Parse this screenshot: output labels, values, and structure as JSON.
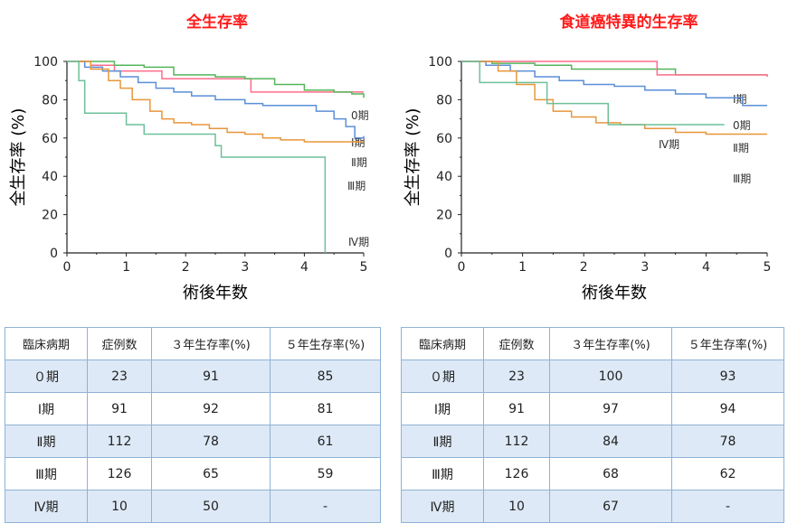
{
  "chart_data": [
    {
      "type": "line",
      "title": "全生存率",
      "xlabel": "術後年数",
      "ylabel": "全生存率 (%)",
      "xlim": [
        0,
        5
      ],
      "ylim": [
        0,
        100
      ],
      "xticks": [
        "0",
        "1",
        "2",
        "3",
        "4",
        "5"
      ],
      "yticks": [
        "0",
        "20",
        "40",
        "60",
        "80",
        "100"
      ],
      "grid": false,
      "series": [
        {
          "name": "0期",
          "color": "#ff6b8a",
          "x": [
            0,
            0.4,
            0.8,
            1.6,
            3.1,
            5
          ],
          "y": [
            100,
            98,
            95,
            91,
            84,
            84
          ]
        },
        {
          "name": "Ⅰ期",
          "color": "#55b55a",
          "x": [
            0,
            0.8,
            1.3,
            1.8,
            2.5,
            3.0,
            3.5,
            4.0,
            4.5,
            4.8,
            5
          ],
          "y": [
            100,
            98,
            97,
            93,
            92,
            91,
            88,
            85,
            84,
            83,
            81
          ]
        },
        {
          "name": "Ⅱ期",
          "color": "#5a8fd8",
          "x": [
            0,
            0.3,
            0.6,
            0.9,
            1.2,
            1.5,
            1.8,
            2.1,
            2.5,
            3.0,
            3.3,
            3.7,
            4.2,
            4.5,
            4.7,
            4.85,
            5
          ],
          "y": [
            100,
            97,
            95,
            92,
            89,
            86,
            84,
            82,
            80,
            78,
            77,
            77,
            74,
            70,
            66,
            60,
            61
          ]
        },
        {
          "name": "Ⅲ期",
          "color": "#e8963a",
          "x": [
            0,
            0.4,
            0.7,
            0.9,
            1.1,
            1.4,
            1.6,
            1.8,
            2.1,
            2.4,
            2.7,
            3.0,
            3.3,
            3.6,
            4.0,
            5
          ],
          "y": [
            100,
            96,
            90,
            86,
            80,
            74,
            70,
            68,
            67,
            65,
            63,
            62,
            60,
            59,
            58,
            58
          ]
        },
        {
          "name": "Ⅳ期",
          "color": "#6dc09a",
          "x": [
            0,
            0.2,
            0.3,
            1.0,
            1.3,
            2.5,
            2.6,
            4.3,
            4.35
          ],
          "y": [
            100,
            90,
            73,
            67,
            62,
            56,
            50,
            50,
            0
          ]
        }
      ]
    },
    {
      "type": "line",
      "title": "食道癌特異的生存率",
      "xlabel": "術後年数",
      "ylabel": "全生存率 (%)",
      "xlim": [
        0,
        5
      ],
      "ylim": [
        0,
        100
      ],
      "xticks": [
        "0",
        "1",
        "2",
        "3",
        "4",
        "5"
      ],
      "yticks": [
        "0",
        "20",
        "40",
        "60",
        "80",
        "100"
      ],
      "grid": false,
      "series": [
        {
          "name": "Ⅰ期",
          "color": "#55b55a",
          "x": [
            0,
            0.5,
            1.2,
            1.8,
            3.5,
            5
          ],
          "y": [
            100,
            99,
            98,
            96,
            93,
            93
          ]
        },
        {
          "name": "0期",
          "color": "#ff6b8a",
          "x": [
            0,
            3.1,
            3.2,
            5
          ],
          "y": [
            100,
            100,
            93,
            92
          ]
        },
        {
          "name": "Ⅱ期",
          "color": "#5a8fd8",
          "x": [
            0,
            0.4,
            0.8,
            1.2,
            1.6,
            2.0,
            2.5,
            3.0,
            3.5,
            4.0,
            4.6,
            5
          ],
          "y": [
            100,
            98,
            95,
            92,
            90,
            88,
            87,
            85,
            83,
            81,
            77,
            77
          ]
        },
        {
          "name": "Ⅲ期",
          "color": "#e8963a",
          "x": [
            0,
            0.6,
            0.9,
            1.2,
            1.5,
            1.8,
            2.2,
            2.6,
            3.0,
            3.5,
            4.0,
            5
          ],
          "y": [
            100,
            95,
            88,
            80,
            74,
            71,
            68,
            67,
            65,
            63,
            62,
            62
          ]
        },
        {
          "name": "Ⅳ期",
          "color": "#6dc09a",
          "x": [
            0,
            0.3,
            0.9,
            1.4,
            2.4,
            4.3
          ],
          "y": [
            100,
            89,
            89,
            78,
            67,
            67
          ]
        }
      ]
    }
  ],
  "tables": [
    {
      "headers": [
        "臨床病期",
        "症例数",
        "３年生存率(%)",
        "５年生存率(%)"
      ],
      "rows": [
        [
          "０期",
          "23",
          "91",
          "85"
        ],
        [
          "Ⅰ期",
          "91",
          "92",
          "81"
        ],
        [
          "Ⅱ期",
          "112",
          "78",
          "61"
        ],
        [
          "Ⅲ期",
          "126",
          "65",
          "59"
        ],
        [
          "Ⅳ期",
          "10",
          "50",
          "-"
        ]
      ]
    },
    {
      "headers": [
        "臨床病期",
        "症例数",
        "３年生存率(%)",
        "５年生存率(%)"
      ],
      "rows": [
        [
          "０期",
          "23",
          "100",
          "93"
        ],
        [
          "Ⅰ期",
          "91",
          "97",
          "94"
        ],
        [
          "Ⅱ期",
          "112",
          "84",
          "78"
        ],
        [
          "Ⅲ期",
          "126",
          "68",
          "62"
        ],
        [
          "Ⅳ期",
          "10",
          "67",
          "-"
        ]
      ]
    }
  ]
}
